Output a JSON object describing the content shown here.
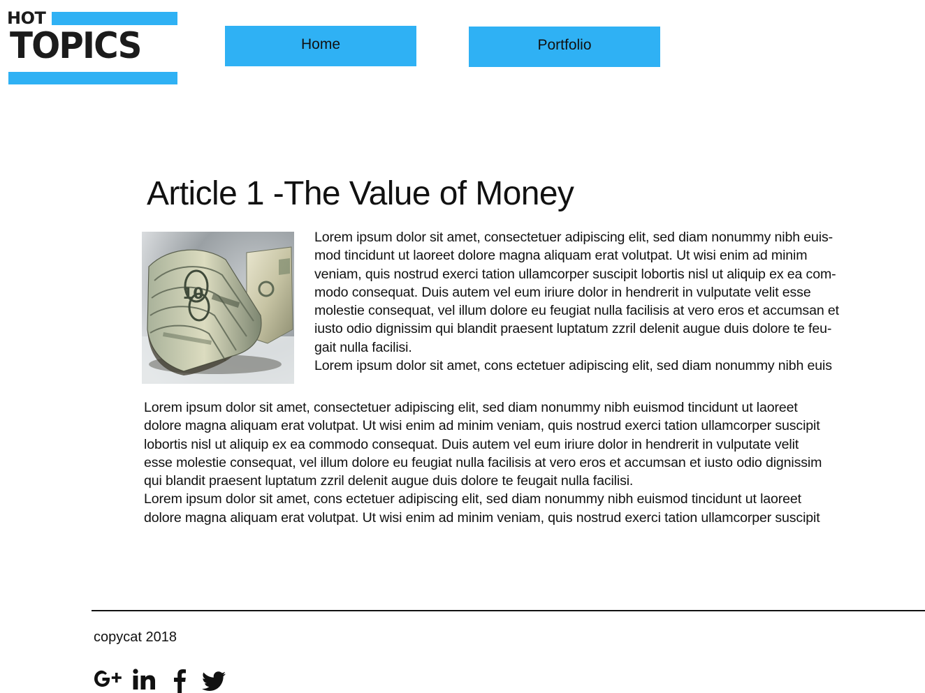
{
  "logo": {
    "small_text": "HOT",
    "big_text": "TOPICS",
    "accent_color": "#2fb1f4",
    "text_color": "#1b1b1b"
  },
  "nav": {
    "items": [
      {
        "label": "Home"
      },
      {
        "label": "Portfolio"
      }
    ],
    "button_color": "#2fb1f4"
  },
  "article": {
    "title": "Article 1 -The Value of Money",
    "image": {
      "icon": "money-photo"
    },
    "side_paragraph_lines": [
      "Lorem ipsum dolor sit amet, consectetuer adipiscing elit, sed diam nonummy nibh euis-",
      "mod tincidunt ut laoreet dolore magna aliquam erat volutpat. Ut wisi enim ad minim",
      "veniam, quis nostrud exerci tation ullamcorper suscipit lobortis nisl ut aliquip ex ea com-",
      "modo consequat. Duis autem vel eum iriure dolor in hendrerit in vulputate velit esse",
      "molestie consequat, vel illum dolore eu feugiat nulla facilisis at vero eros et accumsan et",
      "iusto odio dignissim qui blandit praesent luptatum zzril delenit augue duis dolore te feu-",
      "gait nulla facilisi.",
      "Lorem ipsum dolor sit amet, cons ectetuer adipiscing elit, sed diam nonummy nibh euis"
    ],
    "full_paragraph_lines": [
      "Lorem ipsum dolor sit amet, consectetuer adipiscing elit, sed diam nonummy nibh euismod tincidunt ut laoreet",
      "dolore magna aliquam erat volutpat. Ut wisi enim ad minim veniam, quis nostrud exerci tation ullamcorper suscipit",
      "lobortis nisl ut aliquip ex ea commodo consequat. Duis autem vel eum iriure dolor in hendrerit in vulputate velit",
      "esse molestie consequat, vel illum dolore eu feugiat nulla facilisis at vero eros et accumsan et iusto odio dignissim",
      "qui blandit praesent luptatum zzril delenit augue duis dolore te feugait nulla facilisi.",
      "Lorem ipsum dolor sit amet, cons ectetuer adipiscing elit, sed diam nonummy nibh euismod tincidunt ut laoreet",
      "dolore magna aliquam erat volutpat. Ut wisi enim ad minim veniam, quis nostrud exerci tation ullamcorper suscipit"
    ]
  },
  "footer": {
    "copyright": "copycat 2018",
    "social": [
      {
        "icon": "google-plus-icon"
      },
      {
        "icon": "linkedin-icon"
      },
      {
        "icon": "facebook-icon"
      },
      {
        "icon": "twitter-icon"
      }
    ]
  }
}
